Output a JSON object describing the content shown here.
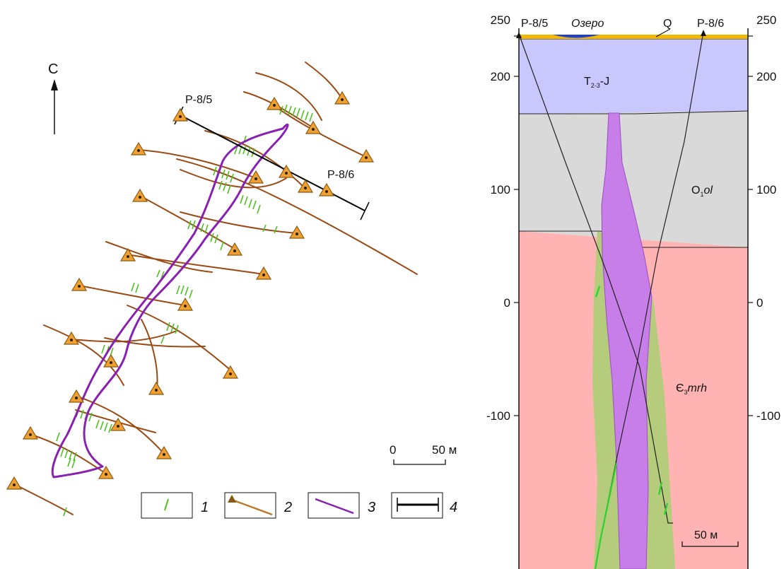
{
  "map": {
    "north_label": "С",
    "profile_start_label": "P-8/5",
    "profile_end_label": "P-8/6",
    "scale": {
      "zero": "0",
      "value": "50 м"
    }
  },
  "legend": {
    "items": [
      {
        "number": "1",
        "icon": "green-tick-icon"
      },
      {
        "number": "2",
        "icon": "borehole-with-trace-icon"
      },
      {
        "number": "3",
        "icon": "purple-contour-line-icon"
      },
      {
        "number": "4",
        "icon": "profile-line-icon"
      }
    ]
  },
  "section": {
    "top_left_label": "P-8/5",
    "top_right_label": "P-8/6",
    "lake_label": "Озеро",
    "q_label": "Q",
    "layers": [
      {
        "main": "T",
        "sub": "2-3",
        "tail": "-J",
        "color": "#c8c8ff"
      },
      {
        "main": "O",
        "sub": "1",
        "tail": "ol",
        "color": "#d9d9d9"
      },
      {
        "main": "Є",
        "sub": "3",
        "tail": "mrh",
        "color": "#ffb3b3"
      }
    ],
    "axis_ticks": [
      "250",
      "200",
      "100",
      "0",
      "-100"
    ],
    "scale": "50 м",
    "colors": {
      "body": "#c87ee8",
      "halo": "#b5cc7c",
      "lake": "#1f3fd0",
      "quaternary": "#f2b800"
    }
  }
}
